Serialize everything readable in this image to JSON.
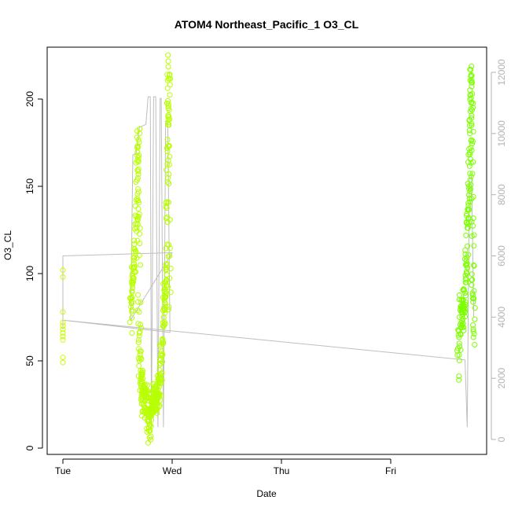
{
  "chart_data": {
    "type": "scatter",
    "title": "ATOM4 Northeast_Pacific_1 O3_CL",
    "xlabel": "Date",
    "ylabel": "O3_CL",
    "x_ticks": [
      {
        "label": "Tue",
        "day": 0
      },
      {
        "label": "Wed",
        "day": 1
      },
      {
        "label": "Thu",
        "day": 2
      },
      {
        "label": "Fri",
        "day": 3
      }
    ],
    "xlim_days": [
      -0.13,
      3.9
    ],
    "ylim": [
      0,
      225
    ],
    "y_ticks": [
      0,
      50,
      100,
      150,
      200
    ],
    "y2lim": [
      0,
      12400
    ],
    "y2_ticks": [
      0,
      2000,
      4000,
      6000,
      8000,
      10000,
      12000
    ],
    "grid": false,
    "legend": "none",
    "colors": {
      "points_early": "#c8ff00",
      "points_mid": "#b8ff00",
      "points_late": "#7dff00",
      "altitude_line": "#bebebe",
      "right_axis": "#b3b3b3"
    },
    "series": [
      {
        "kind": "points",
        "axis": "left",
        "clusters": [
          {
            "day": 0.0,
            "values": [
              102,
              98,
              78,
              72,
              70,
              68,
              66,
              64,
              62,
              52,
              49
            ]
          },
          {
            "day_from": 0.62,
            "day_to": 0.98,
            "profile": [
              [
                0.62,
                75
              ],
              [
                0.64,
                95
              ],
              [
                0.66,
                110
              ],
              [
                0.68,
                150
              ],
              [
                0.69,
                178
              ],
              [
                0.7,
                72
              ],
              [
                0.71,
                40
              ],
              [
                0.73,
                28
              ],
              [
                0.75,
                25
              ],
              [
                0.77,
                30
              ],
              [
                0.79,
                8
              ],
              [
                0.81,
                22
              ],
              [
                0.83,
                30
              ],
              [
                0.85,
                25
              ],
              [
                0.87,
                32
              ],
              [
                0.89,
                35
              ],
              [
                0.91,
                60
              ],
              [
                0.93,
                85
              ],
              [
                0.95,
                100
              ],
              [
                0.96,
                180
              ],
              [
                0.97,
                222
              ],
              [
                0.98,
                70
              ]
            ]
          },
          {
            "day_from": 3.62,
            "day_to": 3.76,
            "profile": [
              [
                3.62,
                45
              ],
              [
                3.64,
                80
              ],
              [
                3.66,
                75
              ],
              [
                3.68,
                90
              ],
              [
                3.7,
                120
              ],
              [
                3.72,
                150
              ],
              [
                3.73,
                190
              ],
              [
                3.74,
                217
              ],
              [
                3.75,
                110
              ],
              [
                3.76,
                60
              ]
            ]
          }
        ]
      },
      {
        "kind": "line",
        "axis": "right",
        "name": "",
        "points": [
          [
            0.0,
            3600
          ],
          [
            0.0,
            6000
          ],
          [
            0.95,
            6100
          ],
          [
            1.0,
            6100
          ],
          [
            0.62,
            3900
          ],
          [
            0.64,
            9300
          ],
          [
            0.67,
            9350
          ],
          [
            0.7,
            10200
          ],
          [
            0.76,
            10300
          ],
          [
            0.78,
            11200
          ],
          [
            0.8,
            11200
          ],
          [
            0.81,
            400
          ],
          [
            0.83,
            11200
          ],
          [
            0.85,
            11200
          ],
          [
            0.87,
            400
          ],
          [
            0.89,
            11150
          ],
          [
            0.9,
            11150
          ],
          [
            0.92,
            400
          ],
          [
            0.94,
            10400
          ],
          [
            0.96,
            10400
          ],
          [
            0.98,
            3500
          ],
          [
            0.0,
            3900
          ],
          [
            3.68,
            2600
          ],
          [
            3.7,
            400
          ],
          [
            3.72,
            8500
          ],
          [
            3.74,
            8600
          ],
          [
            3.76,
            4000
          ]
        ]
      }
    ]
  }
}
